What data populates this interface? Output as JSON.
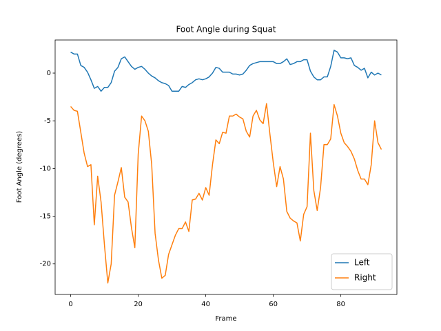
{
  "chart_data": {
    "type": "line",
    "title": "Foot Angle during Squat",
    "x_label": "Frame",
    "y_label": "Foot Angle (degrees)",
    "x": [
      0,
      1,
      2,
      3,
      4,
      5,
      6,
      7,
      8,
      9,
      10,
      11,
      12,
      13,
      14,
      15,
      16,
      17,
      18,
      19,
      20,
      21,
      22,
      23,
      24,
      25,
      26,
      27,
      28,
      29,
      30,
      31,
      32,
      33,
      34,
      35,
      36,
      37,
      38,
      39,
      40,
      41,
      42,
      43,
      44,
      45,
      46,
      47,
      48,
      49,
      50,
      51,
      52,
      53,
      54,
      55,
      56,
      57,
      58,
      59,
      60,
      61,
      62,
      63,
      64,
      65,
      66,
      67,
      68,
      69,
      70,
      71,
      72,
      73,
      74,
      75,
      76,
      77,
      78,
      79,
      80,
      81,
      82,
      83,
      84,
      85,
      86,
      87,
      88,
      89,
      90,
      91,
      92
    ],
    "series": [
      {
        "name": "Left",
        "color": "#1f77b4",
        "values": [
          2.2,
          2.0,
          2.0,
          0.8,
          0.6,
          0.1,
          -0.7,
          -1.6,
          -1.4,
          -1.9,
          -1.5,
          -1.5,
          -1.0,
          0.2,
          0.6,
          1.5,
          1.7,
          1.2,
          0.7,
          0.4,
          0.6,
          0.7,
          0.4,
          0.0,
          -0.3,
          -0.5,
          -0.8,
          -1.0,
          -1.1,
          -1.3,
          -1.9,
          -1.9,
          -1.9,
          -1.4,
          -1.5,
          -1.2,
          -1.0,
          -0.7,
          -0.6,
          -0.7,
          -0.6,
          -0.4,
          0.0,
          0.6,
          0.5,
          0.1,
          0.1,
          0.1,
          -0.1,
          -0.1,
          -0.2,
          -0.1,
          0.3,
          0.8,
          1.0,
          1.1,
          1.2,
          1.2,
          1.2,
          1.2,
          1.2,
          1.0,
          1.0,
          1.2,
          1.5,
          0.9,
          1.0,
          1.2,
          1.2,
          1.4,
          1.4,
          0.2,
          -0.4,
          -0.7,
          -0.7,
          -0.4,
          -0.4,
          0.7,
          2.4,
          2.2,
          1.6,
          1.6,
          1.5,
          1.6,
          0.8,
          0.6,
          0.3,
          0.5,
          -0.5,
          0.1,
          -0.2,
          0.0,
          -0.2
        ]
      },
      {
        "name": "Right",
        "color": "#ff7f0e",
        "values": [
          -3.5,
          -3.9,
          -4.0,
          -6.2,
          -8.4,
          -9.8,
          -9.6,
          -15.9,
          -10.8,
          -13.5,
          -18.0,
          -22.0,
          -20.0,
          -12.8,
          -11.4,
          -9.9,
          -13.0,
          -13.5,
          -16.2,
          -18.3,
          -8.5,
          -4.5,
          -5.0,
          -6.1,
          -9.6,
          -16.8,
          -19.6,
          -21.5,
          -21.2,
          -19.0,
          -18.0,
          -17.0,
          -16.3,
          -16.3,
          -15.6,
          -16.6,
          -13.3,
          -13.2,
          -12.6,
          -13.3,
          -12.0,
          -12.8,
          -9.6,
          -7.0,
          -7.4,
          -6.2,
          -6.3,
          -4.5,
          -4.5,
          -4.3,
          -4.6,
          -4.8,
          -6.1,
          -6.7,
          -4.5,
          -3.9,
          -4.9,
          -5.3,
          -3.2,
          -6.4,
          -9.4,
          -11.9,
          -9.8,
          -11.1,
          -14.5,
          -15.2,
          -15.5,
          -15.7,
          -17.6,
          -14.8,
          -14.0,
          -6.3,
          -12.3,
          -14.4,
          -12.0,
          -7.5,
          -7.5,
          -6.9,
          -3.3,
          -4.5,
          -6.3,
          -7.3,
          -7.7,
          -8.2,
          -9.0,
          -10.2,
          -11.1,
          -11.1,
          -11.7,
          -9.6,
          -5.0,
          -7.3,
          -8.0
        ]
      }
    ],
    "xlim": [
      -4.6,
      96.6
    ],
    "ylim": [
      -23.2,
      3.47
    ],
    "xticks": [
      0,
      20,
      40,
      60,
      80
    ],
    "yticks": [
      -20,
      -15,
      -10,
      -5,
      0
    ],
    "grid": false,
    "legend": "lower right"
  }
}
